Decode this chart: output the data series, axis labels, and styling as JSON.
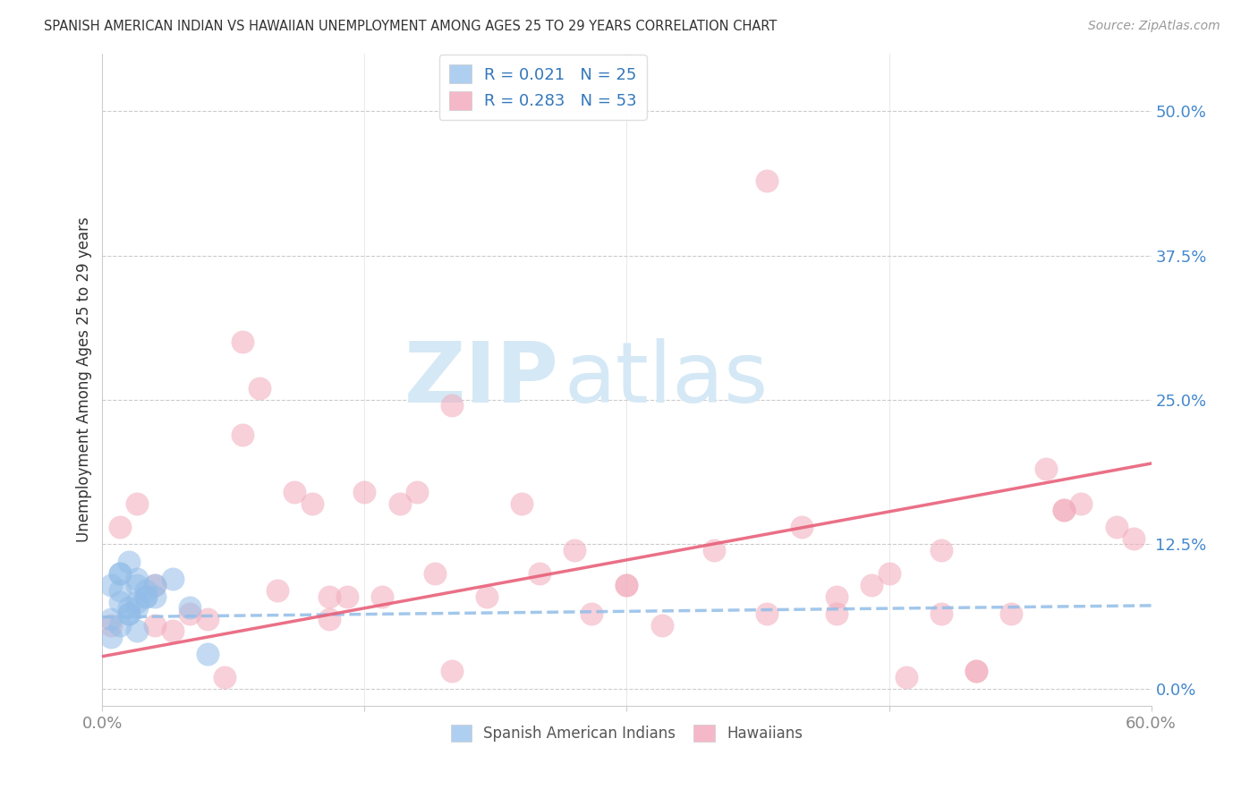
{
  "title": "SPANISH AMERICAN INDIAN VS HAWAIIAN UNEMPLOYMENT AMONG AGES 25 TO 29 YEARS CORRELATION CHART",
  "source": "Source: ZipAtlas.com",
  "ylabel": "Unemployment Among Ages 25 to 29 years",
  "xlim": [
    0.0,
    0.6
  ],
  "ylim": [
    -0.015,
    0.55
  ],
  "yticks": [
    0.0,
    0.125,
    0.25,
    0.375,
    0.5
  ],
  "ytick_labels": [
    "0.0%",
    "12.5%",
    "25.0%",
    "37.5%",
    "50.0%"
  ],
  "xticks": [
    0.0,
    0.15,
    0.3,
    0.45,
    0.6
  ],
  "xtick_labels": [
    "0.0%",
    "",
    "",
    "",
    "60.0%"
  ],
  "color_blue": "#92BDE8",
  "color_blue_fill": "#AECFF0",
  "color_pink": "#F2AABB",
  "color_pink_fill": "#F5B8C8",
  "color_line_blue": "#92BDE8",
  "color_line_pink": "#E8607A",
  "watermark_zip": "ZIP",
  "watermark_atlas": "atlas",
  "watermark_color": "#D5E8F5",
  "blue_line_start_y": 0.062,
  "blue_line_end_y": 0.072,
  "pink_line_start_y": 0.028,
  "pink_line_end_y": 0.195,
  "blue_scatter_x": [
    0.005,
    0.01,
    0.015,
    0.01,
    0.02,
    0.025,
    0.01,
    0.015,
    0.02,
    0.005,
    0.01,
    0.02,
    0.015,
    0.025,
    0.03,
    0.02,
    0.01,
    0.005,
    0.015,
    0.02,
    0.025,
    0.03,
    0.04,
    0.05,
    0.06
  ],
  "blue_scatter_y": [
    0.09,
    0.1,
    0.11,
    0.085,
    0.09,
    0.08,
    0.075,
    0.065,
    0.07,
    0.06,
    0.055,
    0.05,
    0.065,
    0.08,
    0.09,
    0.095,
    0.1,
    0.045,
    0.07,
    0.075,
    0.085,
    0.08,
    0.095,
    0.07,
    0.03
  ],
  "pink_scatter_x": [
    0.005,
    0.01,
    0.02,
    0.03,
    0.04,
    0.05,
    0.06,
    0.07,
    0.08,
    0.09,
    0.1,
    0.11,
    0.12,
    0.13,
    0.14,
    0.15,
    0.16,
    0.17,
    0.18,
    0.19,
    0.2,
    0.22,
    0.24,
    0.25,
    0.27,
    0.28,
    0.3,
    0.32,
    0.35,
    0.38,
    0.4,
    0.42,
    0.44,
    0.46,
    0.48,
    0.5,
    0.52,
    0.54,
    0.55,
    0.56,
    0.58,
    0.59,
    0.03,
    0.08,
    0.13,
    0.2,
    0.3,
    0.38,
    0.45,
    0.5,
    0.55,
    0.42,
    0.48
  ],
  "pink_scatter_y": [
    0.055,
    0.14,
    0.16,
    0.055,
    0.05,
    0.065,
    0.06,
    0.01,
    0.3,
    0.26,
    0.085,
    0.17,
    0.16,
    0.06,
    0.08,
    0.17,
    0.08,
    0.16,
    0.17,
    0.1,
    0.245,
    0.08,
    0.16,
    0.1,
    0.12,
    0.065,
    0.09,
    0.055,
    0.12,
    0.065,
    0.14,
    0.08,
    0.09,
    0.01,
    0.065,
    0.015,
    0.065,
    0.19,
    0.155,
    0.16,
    0.14,
    0.13,
    0.09,
    0.22,
    0.08,
    0.015,
    0.09,
    0.44,
    0.1,
    0.015,
    0.155,
    0.065,
    0.12
  ]
}
